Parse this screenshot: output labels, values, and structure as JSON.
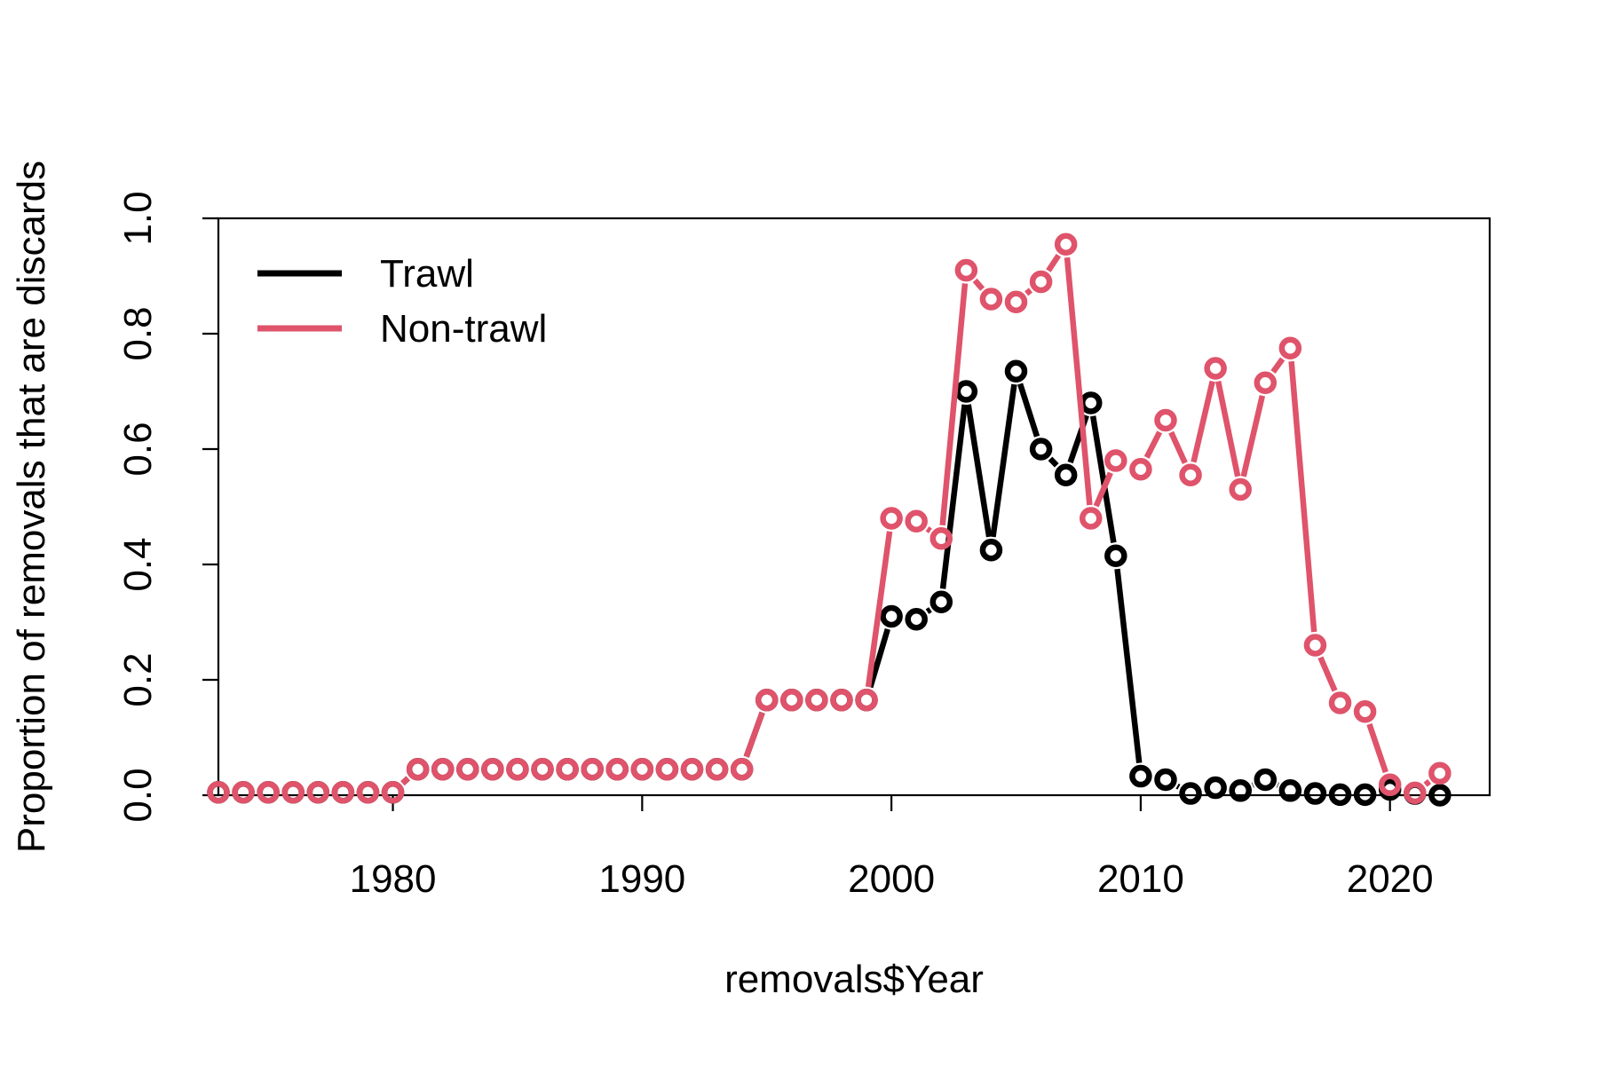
{
  "chart_data": {
    "type": "line",
    "title": "",
    "xlabel": "removals$Year",
    "ylabel": "Proportion of removals that are discards",
    "xlim": [
      1973,
      2024
    ],
    "ylim": [
      0,
      1
    ],
    "x_ticks": [
      1980,
      1990,
      2000,
      2010,
      2020
    ],
    "y_ticks": [
      0.0,
      0.2,
      0.4,
      0.6,
      0.8,
      1.0
    ],
    "y_tick_labels": [
      "0.0",
      "0.2",
      "0.4",
      "0.6",
      "0.8",
      "1.0"
    ],
    "grid": false,
    "legend_position": "top-left",
    "series": [
      {
        "name": "Trawl",
        "color": "#000000",
        "x": [
          1973,
          1974,
          1975,
          1976,
          1977,
          1978,
          1979,
          1980,
          1981,
          1982,
          1983,
          1984,
          1985,
          1986,
          1987,
          1988,
          1989,
          1990,
          1991,
          1992,
          1993,
          1994,
          1995,
          1996,
          1997,
          1998,
          1999,
          2000,
          2001,
          2002,
          2003,
          2004,
          2005,
          2006,
          2007,
          2008,
          2009,
          2010,
          2011,
          2012,
          2013,
          2014,
          2015,
          2016,
          2017,
          2018,
          2019,
          2020,
          2021,
          2022
        ],
        "values": [
          0.005,
          0.005,
          0.005,
          0.005,
          0.005,
          0.005,
          0.005,
          0.005,
          0.045,
          0.045,
          0.045,
          0.045,
          0.045,
          0.045,
          0.045,
          0.045,
          0.045,
          0.045,
          0.045,
          0.045,
          0.045,
          0.045,
          0.165,
          0.165,
          0.165,
          0.165,
          0.165,
          0.31,
          0.305,
          0.335,
          0.7,
          0.425,
          0.735,
          0.6,
          0.555,
          0.68,
          0.415,
          0.033,
          0.027,
          0.003,
          0.013,
          0.008,
          0.027,
          0.008,
          0.003,
          0.001,
          0.001,
          0.01,
          0.003,
          0.0
        ]
      },
      {
        "name": "Non-trawl",
        "color": "#DF536B",
        "x": [
          1973,
          1974,
          1975,
          1976,
          1977,
          1978,
          1979,
          1980,
          1981,
          1982,
          1983,
          1984,
          1985,
          1986,
          1987,
          1988,
          1989,
          1990,
          1991,
          1992,
          1993,
          1994,
          1995,
          1996,
          1997,
          1998,
          1999,
          2000,
          2001,
          2002,
          2003,
          2004,
          2005,
          2006,
          2007,
          2008,
          2009,
          2010,
          2011,
          2012,
          2013,
          2014,
          2015,
          2016,
          2017,
          2018,
          2019,
          2020,
          2021,
          2022
        ],
        "values": [
          0.005,
          0.005,
          0.005,
          0.005,
          0.005,
          0.005,
          0.005,
          0.005,
          0.045,
          0.045,
          0.045,
          0.045,
          0.045,
          0.045,
          0.045,
          0.045,
          0.045,
          0.045,
          0.045,
          0.045,
          0.045,
          0.045,
          0.165,
          0.165,
          0.165,
          0.165,
          0.165,
          0.48,
          0.475,
          0.445,
          0.91,
          0.86,
          0.855,
          0.89,
          0.955,
          0.48,
          0.58,
          0.565,
          0.65,
          0.555,
          0.74,
          0.53,
          0.715,
          0.775,
          0.26,
          0.16,
          0.145,
          0.018,
          0.004,
          0.038
        ]
      }
    ]
  }
}
